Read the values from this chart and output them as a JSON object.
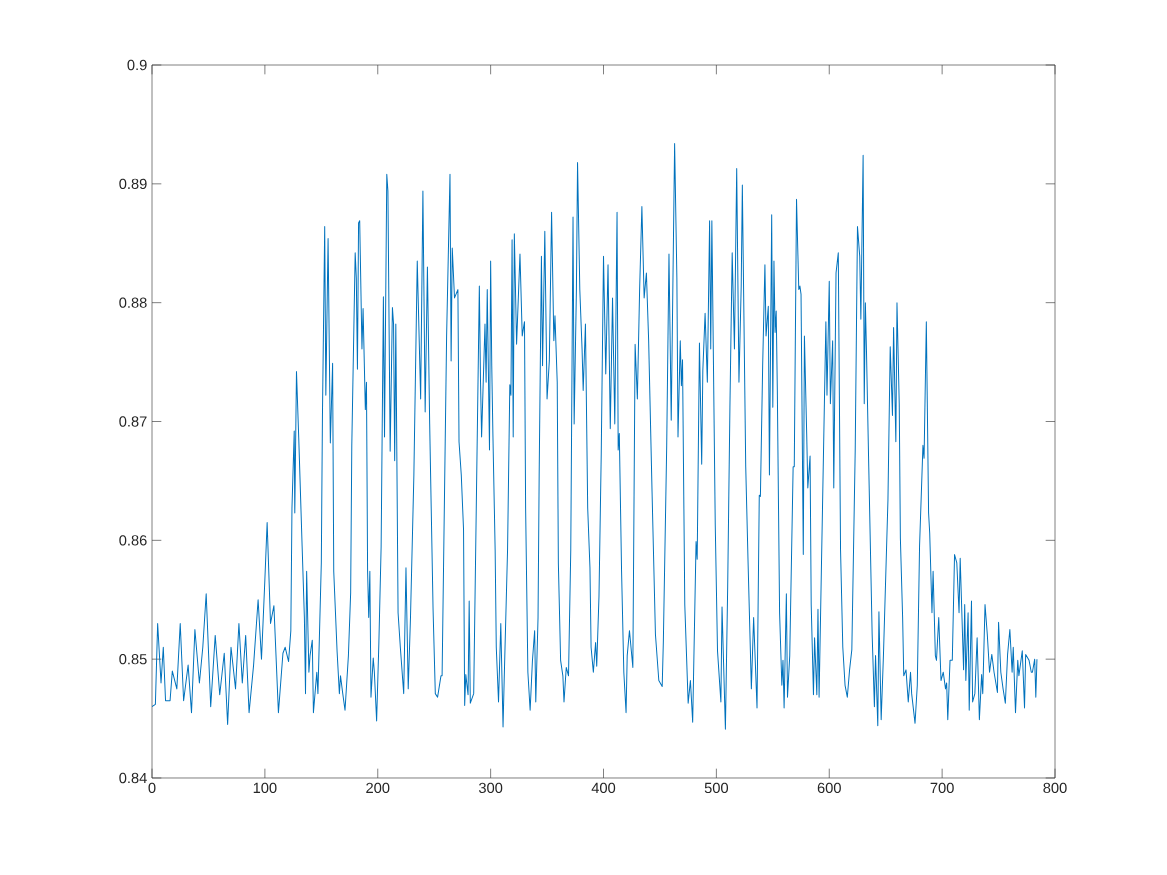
{
  "chart_data": {
    "type": "line",
    "xlim": [
      0,
      800
    ],
    "ylim": [
      0.84,
      0.9
    ],
    "xticks": [
      0,
      100,
      200,
      300,
      400,
      500,
      600,
      700,
      800
    ],
    "yticks": [
      0.84,
      0.85,
      0.86,
      0.87,
      0.88,
      0.89,
      0.9
    ],
    "grid": false,
    "marker": "none",
    "line_style": "solid",
    "series": [
      {
        "color": "#0072bd",
        "x": [
          0,
          3,
          5,
          8,
          10,
          12,
          16,
          18,
          22,
          25,
          28,
          32,
          35,
          38,
          42,
          45,
          48,
          52,
          56,
          60,
          64,
          67,
          70,
          74,
          77,
          80,
          83,
          86,
          90,
          94,
          97,
          100,
          102,
          105,
          108,
          112,
          116,
          118,
          121,
          123,
          124,
          126,
          126.5,
          128,
          130,
          133,
          135,
          136,
          137,
          139,
          140,
          142,
          143,
          146,
          147,
          150,
          151,
          153,
          154,
          156,
          158,
          160,
          161,
          164,
          166,
          167,
          169,
          171,
          174,
          176,
          177,
          180,
          181,
          182,
          183,
          184,
          186,
          187,
          189,
          190,
          191,
          192,
          193,
          194,
          196,
          197,
          199,
          201,
          203,
          205,
          206,
          208,
          209,
          211,
          213,
          214,
          215,
          216,
          218,
          220,
          223,
          225,
          227,
          229,
          232,
          235,
          238,
          240,
          242,
          244,
          246,
          249,
          251,
          253,
          256,
          257,
          261,
          264,
          265,
          266,
          268,
          271,
          272,
          274,
          276,
          277,
          278,
          280,
          281,
          282,
          285,
          290,
          291,
          292,
          295,
          296,
          297,
          299,
          300,
          301,
          302,
          304,
          305,
          307,
          309,
          311,
          312,
          315,
          317,
          318,
          319,
          320,
          321,
          323,
          326,
          328,
          330,
          331,
          333,
          335,
          337,
          339,
          340,
          342,
          343,
          345,
          346,
          348,
          350,
          352,
          354,
          356,
          357,
          359,
          360,
          362,
          364,
          365,
          367,
          369,
          371,
          373,
          374,
          376,
          377,
          379,
          381,
          382,
          384,
          386,
          388,
          389,
          391,
          393,
          394,
          396,
          398,
          400,
          402,
          404,
          406,
          408,
          410,
          412,
          413,
          414,
          416,
          418,
          420,
          421,
          423,
          426,
          428,
          430,
          432,
          434,
          436,
          438,
          440,
          443,
          446,
          449,
          452,
          453,
          456,
          458,
          460,
          463,
          465,
          466,
          468,
          469,
          470,
          472,
          475,
          477,
          479,
          482,
          483,
          485,
          487,
          488,
          490,
          492,
          494,
          495,
          496,
          499,
          501,
          504,
          505,
          508,
          510,
          512,
          514,
          516,
          518,
          520,
          522,
          523,
          526,
          528,
          531,
          533,
          536,
          538,
          539,
          541,
          543,
          544,
          546,
          547,
          549,
          550,
          551,
          552,
          553,
          554,
          556,
          558,
          559,
          560,
          562,
          563,
          565,
          568,
          569,
          571,
          573,
          574,
          575,
          577,
          578,
          580,
          581,
          583,
          584,
          586,
          587,
          589,
          590,
          591,
          593,
          597,
          598,
          600,
          601,
          603,
          604,
          606,
          608,
          610,
          612,
          614,
          616,
          618,
          620,
          623,
          625,
          627,
          628,
          630,
          631,
          632,
          633,
          635,
          638,
          640,
          641,
          643,
          644,
          646,
          648,
          652,
          654,
          656,
          657,
          659,
          660,
          662,
          663,
          665,
          666,
          668,
          670,
          672,
          673,
          676,
          678,
          680,
          683,
          684,
          686,
          688,
          689,
          691,
          692,
          694,
          695,
          697,
          699,
          701,
          703,
          704,
          705,
          707,
          709,
          711,
          713,
          715,
          716,
          719,
          720,
          721,
          723,
          724,
          726,
          727,
          729,
          731,
          733,
          735,
          736,
          738,
          740,
          742,
          744,
          746,
          749,
          750,
          752,
          754,
          756,
          758,
          760,
          762,
          763,
          765,
          767,
          768,
          771,
          773,
          774,
          777,
          779,
          780,
          782,
          783,
          784
        ],
        "values": [
          0.846,
          0.8462,
          0.853,
          0.848,
          0.851,
          0.8465,
          0.8465,
          0.849,
          0.8475,
          0.853,
          0.8465,
          0.8495,
          0.8455,
          0.8525,
          0.848,
          0.851,
          0.8555,
          0.846,
          0.852,
          0.847,
          0.8505,
          0.8445,
          0.851,
          0.8475,
          0.853,
          0.848,
          0.852,
          0.8455,
          0.8495,
          0.855,
          0.85,
          0.8567,
          0.8615,
          0.853,
          0.8545,
          0.8455,
          0.8505,
          0.851,
          0.8498,
          0.8524,
          0.8627,
          0.8692,
          0.8623,
          0.8742,
          0.8686,
          0.8595,
          0.8535,
          0.8471,
          0.8574,
          0.8489,
          0.8503,
          0.8516,
          0.8455,
          0.8489,
          0.8471,
          0.8581,
          0.8705,
          0.8864,
          0.8722,
          0.8854,
          0.8682,
          0.8749,
          0.8574,
          0.8506,
          0.8471,
          0.8486,
          0.8471,
          0.8457,
          0.8503,
          0.8556,
          0.868,
          0.8842,
          0.8821,
          0.8744,
          0.8867,
          0.8869,
          0.8761,
          0.8795,
          0.871,
          0.8733,
          0.8574,
          0.8535,
          0.8574,
          0.8468,
          0.8501,
          0.8489,
          0.8448,
          0.8514,
          0.8595,
          0.8805,
          0.8687,
          0.8908,
          0.8894,
          0.8675,
          0.8796,
          0.8782,
          0.8667,
          0.8782,
          0.8539,
          0.851,
          0.8471,
          0.8577,
          0.8475,
          0.8535,
          0.8655,
          0.8835,
          0.8719,
          0.8894,
          0.8708,
          0.883,
          0.8698,
          0.8542,
          0.8471,
          0.8468,
          0.8486,
          0.8486,
          0.8772,
          0.8908,
          0.8751,
          0.8846,
          0.8804,
          0.8811,
          0.8683,
          0.8655,
          0.8609,
          0.8461,
          0.8487,
          0.847,
          0.8549,
          0.8463,
          0.8471,
          0.8814,
          0.8736,
          0.8687,
          0.8782,
          0.8733,
          0.8811,
          0.8676,
          0.8835,
          0.8747,
          0.869,
          0.8592,
          0.851,
          0.8464,
          0.853,
          0.8443,
          0.8482,
          0.8592,
          0.8731,
          0.8722,
          0.8853,
          0.8687,
          0.8858,
          0.8765,
          0.8841,
          0.8772,
          0.8784,
          0.8627,
          0.8489,
          0.8457,
          0.8498,
          0.8524,
          0.8464,
          0.8535,
          0.8655,
          0.8839,
          0.8747,
          0.886,
          0.8719,
          0.8751,
          0.8876,
          0.8768,
          0.8789,
          0.8733,
          0.8581,
          0.8499,
          0.8486,
          0.8464,
          0.8493,
          0.8486,
          0.8592,
          0.8872,
          0.8698,
          0.8811,
          0.8918,
          0.8811,
          0.8761,
          0.8726,
          0.8782,
          0.8627,
          0.8577,
          0.851,
          0.8489,
          0.8514,
          0.8494,
          0.8553,
          0.8673,
          0.8839,
          0.874,
          0.8832,
          0.8694,
          0.8804,
          0.8698,
          0.8876,
          0.8676,
          0.869,
          0.8574,
          0.8489,
          0.8455,
          0.8503,
          0.8524,
          0.8493,
          0.8765,
          0.8719,
          0.8811,
          0.8881,
          0.8804,
          0.8825,
          0.8768,
          0.8641,
          0.8521,
          0.8482,
          0.8477,
          0.8514,
          0.868,
          0.8841,
          0.8701,
          0.8934,
          0.8821,
          0.8687,
          0.8768,
          0.873,
          0.8752,
          0.8546,
          0.8463,
          0.8482,
          0.8447,
          0.8599,
          0.8584,
          0.8766,
          0.8664,
          0.8743,
          0.8791,
          0.8733,
          0.8869,
          0.8761,
          0.8869,
          0.8613,
          0.8507,
          0.8464,
          0.8544,
          0.8441,
          0.856,
          0.8712,
          0.8842,
          0.8761,
          0.8913,
          0.8733,
          0.8814,
          0.8899,
          0.8662,
          0.8584,
          0.8475,
          0.8535,
          0.8459,
          0.8638,
          0.8637,
          0.8747,
          0.8832,
          0.8772,
          0.8797,
          0.8655,
          0.8874,
          0.8712,
          0.8835,
          0.8775,
          0.8793,
          0.8726,
          0.8539,
          0.8478,
          0.8499,
          0.8459,
          0.8555,
          0.8468,
          0.8503,
          0.8662,
          0.8662,
          0.8887,
          0.8811,
          0.8814,
          0.8807,
          0.8588,
          0.8772,
          0.869,
          0.8644,
          0.8671,
          0.8546,
          0.847,
          0.8518,
          0.847,
          0.8542,
          0.8468,
          0.8574,
          0.8784,
          0.8722,
          0.8818,
          0.8715,
          0.8768,
          0.8644,
          0.8825,
          0.8842,
          0.8592,
          0.851,
          0.8478,
          0.8468,
          0.8491,
          0.8508,
          0.8676,
          0.8864,
          0.8839,
          0.8786,
          0.8924,
          0.8715,
          0.88,
          0.8758,
          0.8662,
          0.8521,
          0.846,
          0.8503,
          0.8444,
          0.854,
          0.8449,
          0.8503,
          0.8634,
          0.8763,
          0.8705,
          0.8779,
          0.8683,
          0.88,
          0.8715,
          0.8602,
          0.8535,
          0.8486,
          0.8491,
          0.8464,
          0.8489,
          0.8471,
          0.8446,
          0.8478,
          0.8595,
          0.868,
          0.8669,
          0.8784,
          0.8623,
          0.8606,
          0.8539,
          0.8574,
          0.8503,
          0.8499,
          0.8535,
          0.8482,
          0.8489,
          0.8475,
          0.848,
          0.8449,
          0.8499,
          0.8499,
          0.8588,
          0.8581,
          0.8539,
          0.8585,
          0.8491,
          0.8546,
          0.8482,
          0.8539,
          0.8457,
          0.8549,
          0.8464,
          0.8471,
          0.8518,
          0.8449,
          0.8487,
          0.8471,
          0.8546,
          0.8521,
          0.8489,
          0.8504,
          0.8489,
          0.8472,
          0.8531,
          0.8489,
          0.8475,
          0.8463,
          0.8504,
          0.8525,
          0.8489,
          0.851,
          0.8455,
          0.8499,
          0.8486,
          0.8507,
          0.8459,
          0.8504,
          0.8499,
          0.8489,
          0.8489,
          0.85,
          0.8468,
          0.85
        ]
      }
    ]
  }
}
